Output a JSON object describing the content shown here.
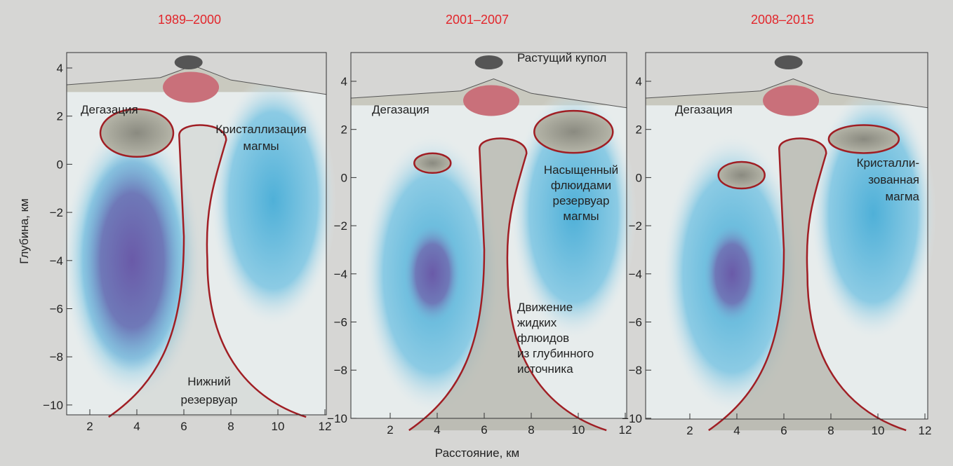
{
  "y_axis": {
    "label": "Глубина, км",
    "ticks": [
      {
        "value": 4,
        "label": "4"
      },
      {
        "value": 2,
        "label": "2"
      },
      {
        "value": 0,
        "label": "0"
      },
      {
        "value": -2,
        "label": "−2"
      },
      {
        "value": -4,
        "label": "−4"
      },
      {
        "value": -6,
        "label": "−6"
      },
      {
        "value": -8,
        "label": "−8"
      },
      {
        "value": -10,
        "label": "−10"
      }
    ]
  },
  "x_axis": {
    "label": "Расстояние, км",
    "ticks": [
      2,
      4,
      6,
      8,
      10,
      12
    ]
  },
  "panels": [
    {
      "title": "1989–2000",
      "annotations": [
        {
          "lines": [
            "Дегазация"
          ]
        },
        {
          "lines": [
            "Кристаллизация",
            "магмы"
          ]
        },
        {
          "lines": [
            "Нижний",
            "резервуар"
          ]
        }
      ]
    },
    {
      "title": "2001–2007",
      "annotations": [
        {
          "lines": [
            "Растущий купол"
          ]
        },
        {
          "lines": [
            "Дегазация"
          ]
        },
        {
          "lines": [
            "Насыщенный",
            "флюидами",
            "резервуар",
            "магмы"
          ]
        },
        {
          "lines": [
            "Движение",
            "жидких",
            "флюидов",
            "из глубинного",
            "источника"
          ]
        }
      ]
    },
    {
      "title": "2008–2015",
      "annotations": [
        {
          "lines": [
            "Дегазация"
          ]
        },
        {
          "lines": [
            "Кристалли-",
            "зованная",
            "магма"
          ]
        }
      ]
    }
  ]
}
